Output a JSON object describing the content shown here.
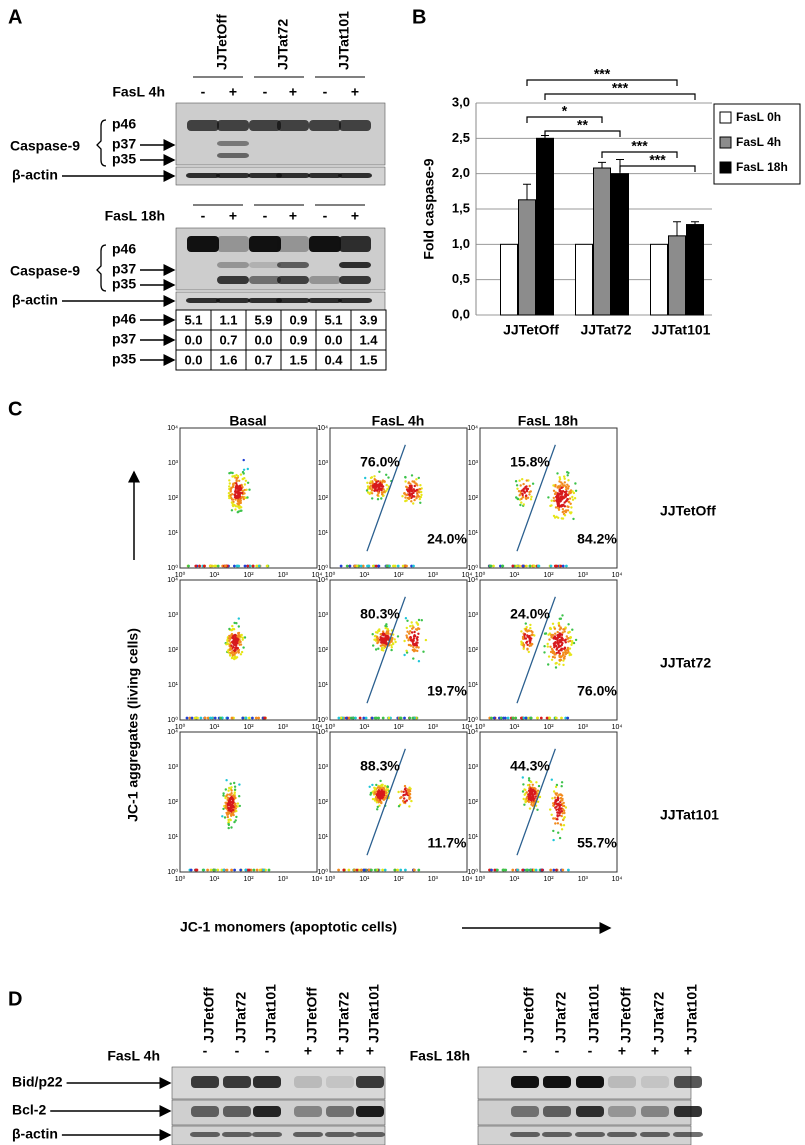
{
  "panel_labels": [
    "A",
    "B",
    "C",
    "D"
  ],
  "panel_a": {
    "lanes": [
      "JJTetOff",
      "JJTat72",
      "JJTat101"
    ],
    "blot_top": {
      "treatment": "FasL 4h",
      "signs": [
        "-",
        "+",
        "-",
        "+",
        "-",
        "+"
      ],
      "protein": "Caspase-9",
      "bands": [
        "p46",
        "p37",
        "p35"
      ],
      "loading": "β-actin"
    },
    "blot_bottom": {
      "treatment": "FasL 18h",
      "signs": [
        "-",
        "+",
        "-",
        "+",
        "-",
        "+"
      ],
      "protein": "Caspase-9",
      "bands": [
        "p46",
        "p37",
        "p35"
      ],
      "loading": "β-actin"
    },
    "quant": [
      {
        "label": "p46",
        "values": [
          "5.1",
          "1.1",
          "5.9",
          "0.9",
          "5.1",
          "3.9"
        ]
      },
      {
        "label": "p37",
        "values": [
          "0.0",
          "0.7",
          "0.0",
          "0.9",
          "0.0",
          "1.4"
        ]
      },
      {
        "label": "p35",
        "values": [
          "0.0",
          "1.6",
          "0.7",
          "1.5",
          "0.4",
          "1.5"
        ]
      }
    ]
  },
  "chart_data": {
    "type": "bar",
    "ylabel": "Fold caspase-9",
    "categories": [
      "JJTetOff",
      "JJTat72",
      "JJTat101"
    ],
    "series": [
      {
        "name": "FasL 0h",
        "color": "#ffffff",
        "values": [
          1,
          1,
          1
        ]
      },
      {
        "name": "FasL 4h",
        "color": "#8c8c8c",
        "values": [
          1.63,
          2.08,
          1.12
        ],
        "errors": [
          0.22,
          0.08,
          0.2
        ]
      },
      {
        "name": "FasL 18h",
        "color": "#000000",
        "values": [
          2.5,
          2.0,
          1.28
        ],
        "errors": [
          0.04,
          0.2,
          0.04
        ]
      }
    ],
    "ylim": [
      0,
      3
    ],
    "yticks": [
      {
        "value": 0,
        "label": "0,0"
      },
      {
        "value": 0.5,
        "label": "0,5"
      },
      {
        "value": 1,
        "label": "1,0"
      },
      {
        "value": 1.5,
        "label": "1,5"
      },
      {
        "value": 2,
        "label": "2,0"
      },
      {
        "value": 2.5,
        "label": "2,5"
      },
      {
        "value": 3,
        "label": "3,0"
      }
    ],
    "grid": true,
    "legend": "right",
    "annotations": [
      "***",
      "***",
      "*",
      "**",
      "***",
      "***"
    ]
  },
  "panel_c": {
    "columns": [
      "Basal",
      "FasL 4h",
      "FasL 18h"
    ],
    "rows": [
      "JJTetOff",
      "JJTat72",
      "JJTat101"
    ],
    "percentages": [
      [
        [
          "76.0%",
          "24.0%"
        ],
        [
          "15.8%",
          "84.2%"
        ]
      ],
      [
        [
          "80.3%",
          "19.7%"
        ],
        [
          "24.0%",
          "76.0%"
        ]
      ],
      [
        [
          "88.3%",
          "11.7%"
        ],
        [
          "44.3%",
          "55.7%"
        ]
      ]
    ],
    "axis_ticks": [
      "10⁰",
      "10¹",
      "10²",
      "10³",
      "10⁴"
    ],
    "ylabel": "JC-1 aggregates (living cells)",
    "xlabel": "JC-1 monomers (apoptotic cells)"
  },
  "panel_d": {
    "rows": [
      "Bid/p22",
      "Bcl-2",
      "β-actin"
    ],
    "left": {
      "lanes": [
        "JJTetOff",
        "JJTat72",
        "JJTat101",
        "JJTetOff",
        "JJTat72",
        "JJTat101"
      ],
      "treatment": "FasL 4h",
      "signs": [
        "-",
        "-",
        "-",
        "+",
        "+",
        "+"
      ]
    },
    "right": {
      "lanes": [
        "JJTetOff",
        "JJTat72",
        "JJTat101",
        "JJTetOff",
        "JJTat72",
        "JJTat101"
      ],
      "treatment": "FasL 18h",
      "signs": [
        "-",
        "-",
        "-",
        "+",
        "+",
        "+"
      ]
    }
  }
}
